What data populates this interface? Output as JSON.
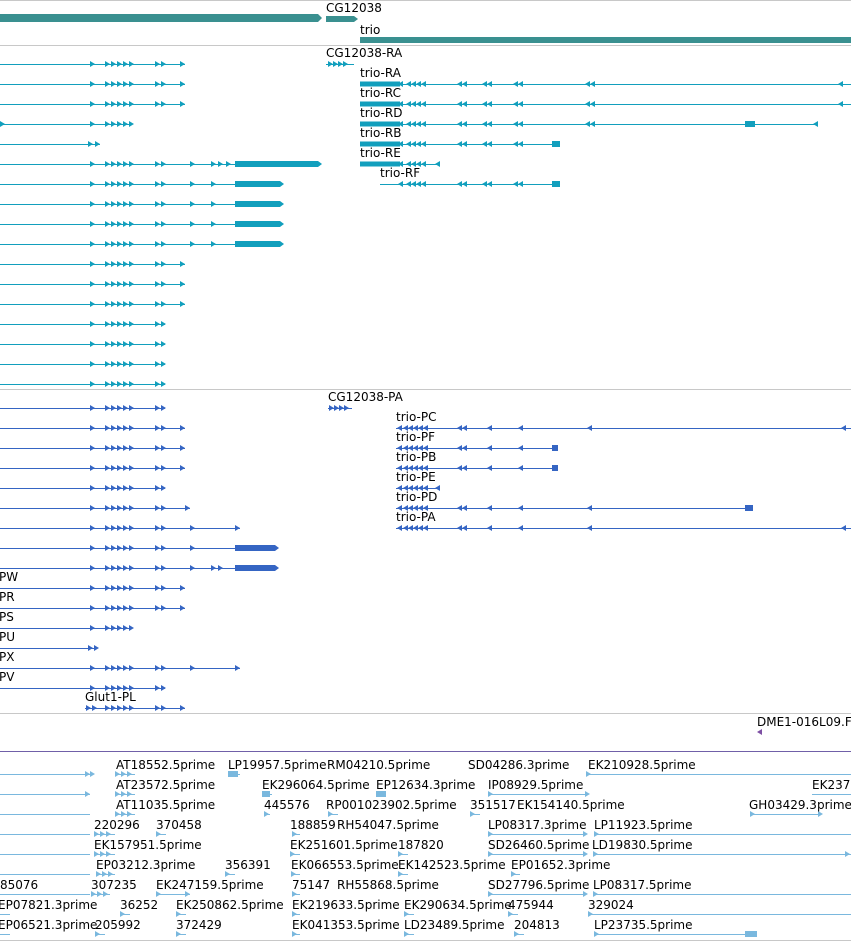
{
  "colors": {
    "gene": "#3a9090",
    "transcript": "#129fbd",
    "protein": "#3565c3",
    "est": "#7ab8de",
    "divider": "#c8c8c8",
    "purple_divider": "#7060a8"
  },
  "gene_track": {
    "labels": [
      "CG12038",
      "trio"
    ]
  },
  "transcript_track": {
    "labels": [
      "CG12038-RA",
      "trio-RA",
      "trio-RC",
      "trio-RD",
      "trio-RB",
      "trio-RE",
      "trio-RF"
    ]
  },
  "protein_track": {
    "labels": [
      "CG12038-PA",
      "trio-PC",
      "trio-PF",
      "trio-PB",
      "trio-PE",
      "trio-PD",
      "trio-PA",
      "PW",
      "PR",
      "PS",
      "PU",
      "PX",
      "PV",
      "Glut1-PL"
    ]
  },
  "clone_track": {
    "labels": [
      "DME1-016L09.F"
    ]
  },
  "est_track": {
    "labels": [
      "AT18552.5prime",
      "LP19957.5prime",
      "RM04210.5prime",
      "SD04286.3prime",
      "EK210928.5prime",
      "AT23572.5prime",
      "EK296064.5prime",
      "EP12634.3prime",
      "IP08929.5prime",
      "EK237",
      "AT11035.5prime",
      "445576",
      "RP001023902.5prime",
      "351517",
      "EK154140.5prime",
      "GH03429.3prime",
      "220296",
      "370458",
      "188859",
      "RH54047.5prime",
      "LP08317.3prime",
      "LP11923.5prime",
      "EK157951.5prime",
      "EK251601.5prime",
      "187820",
      "SD26460.5prime",
      "LD19830.5prime",
      "EP03212.3prime",
      "356391",
      "EK066553.5prime",
      "EK142523.5prime",
      "EP01652.3prime",
      "85076",
      "307235",
      "EK247159.5prime",
      "75147",
      "RH55868.5prime",
      "SD27796.5prime",
      "LP08317.5prime",
      "EP07821.3prime",
      "36252",
      "EK250862.5prime",
      "EK219633.5prime",
      "EK290634.5prime",
      "475944",
      "329024",
      "EP06521.3prime",
      "205992",
      "372429",
      "EK041353.5prime",
      "LD23489.5prime",
      "204813",
      "LP23735.5prime"
    ]
  }
}
